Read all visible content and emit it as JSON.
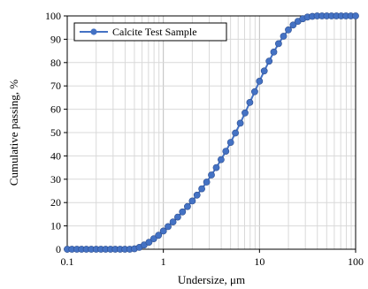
{
  "chart_data": {
    "type": "line",
    "title": "",
    "xlabel": "Undersize, μm",
    "ylabel": "Cumulative passing, %",
    "x_scale": "log",
    "xlim": [
      0.1,
      100
    ],
    "ylim": [
      0,
      100
    ],
    "x_ticks": [
      0.1,
      1,
      10,
      100
    ],
    "x_tick_labels": [
      "0.1",
      "1",
      "10",
      "100"
    ],
    "y_ticks": [
      0,
      10,
      20,
      30,
      40,
      50,
      60,
      70,
      80,
      90,
      100
    ],
    "y_tick_labels": [
      "0",
      "10",
      "20",
      "30",
      "40",
      "50",
      "60",
      "70",
      "80",
      "90",
      "100"
    ],
    "grid": true,
    "legend_position": "top-left",
    "series": [
      {
        "name": "Calcite Test Sample",
        "color": "#4472C4",
        "marker": "circle",
        "x": [
          0.1,
          0.112,
          0.126,
          0.141,
          0.158,
          0.178,
          0.2,
          0.224,
          0.251,
          0.282,
          0.316,
          0.355,
          0.398,
          0.447,
          0.501,
          0.562,
          0.631,
          0.708,
          0.794,
          0.891,
          1.0,
          1.12,
          1.26,
          1.41,
          1.58,
          1.78,
          2.0,
          2.24,
          2.51,
          2.82,
          3.16,
          3.55,
          3.98,
          4.47,
          5.01,
          5.62,
          6.31,
          7.08,
          7.94,
          8.91,
          10.0,
          11.2,
          12.6,
          14.1,
          15.8,
          17.8,
          20.0,
          22.4,
          25.1,
          28.2,
          31.6,
          35.5,
          39.8,
          44.7,
          50.1,
          56.2,
          63.1,
          70.8,
          79.4,
          89.1,
          100.0
        ],
        "y": [
          0,
          0,
          0,
          0,
          0,
          0,
          0,
          0,
          0,
          0,
          0,
          0,
          0,
          0,
          0.2,
          0.8,
          1.8,
          3.0,
          4.5,
          6.0,
          7.8,
          9.7,
          11.7,
          13.8,
          16.0,
          18.3,
          20.7,
          23.2,
          25.9,
          28.8,
          31.8,
          35.0,
          38.4,
          42.0,
          45.8,
          49.8,
          54.0,
          58.4,
          62.9,
          67.5,
          72.0,
          76.4,
          80.6,
          84.5,
          88.1,
          91.3,
          94.0,
          96.1,
          97.7,
          98.8,
          99.5,
          99.8,
          100,
          100,
          100,
          100,
          100,
          100,
          100,
          100,
          100
        ]
      }
    ]
  }
}
